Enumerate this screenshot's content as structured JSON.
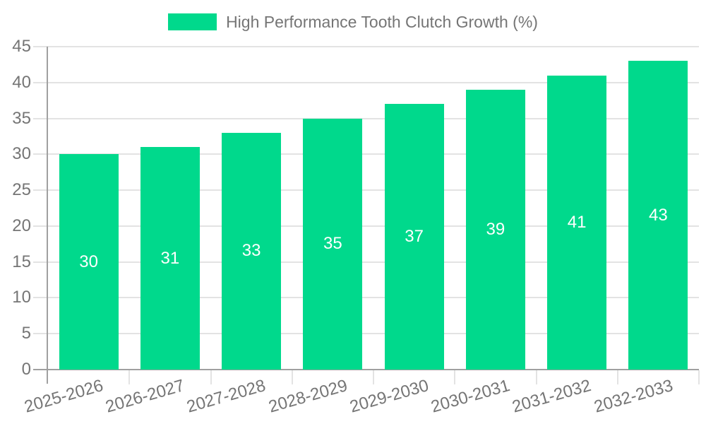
{
  "chart_data": {
    "type": "bar",
    "title": "High Performance Tooth Clutch Growth (%)",
    "categories": [
      "2025-2026",
      "2026-2027",
      "2027-2028",
      "2028-2029",
      "2029-2030",
      "2030-2031",
      "2031-2032",
      "2032-2033"
    ],
    "values": [
      30,
      31,
      33,
      35,
      37,
      39,
      41,
      43
    ],
    "series": [
      {
        "name": "High Performance Tooth Clutch Growth (%)",
        "values": [
          30,
          31,
          33,
          35,
          37,
          39,
          41,
          43
        ]
      }
    ],
    "xlabel": "",
    "ylabel": "",
    "ylim": [
      0,
      45
    ],
    "yticks": [
      0,
      5,
      10,
      15,
      20,
      25,
      30,
      35,
      40,
      45
    ],
    "grid": true,
    "legend_position": "top",
    "bar_labels_visible": true,
    "colors": {
      "bar": "#00D98C",
      "bar_label": "#FFFFFF",
      "axis_text": "#757575",
      "grid_line": "#E3E3E3",
      "axis_line": "#A0A0A0",
      "background": "#FFFFFF"
    }
  }
}
